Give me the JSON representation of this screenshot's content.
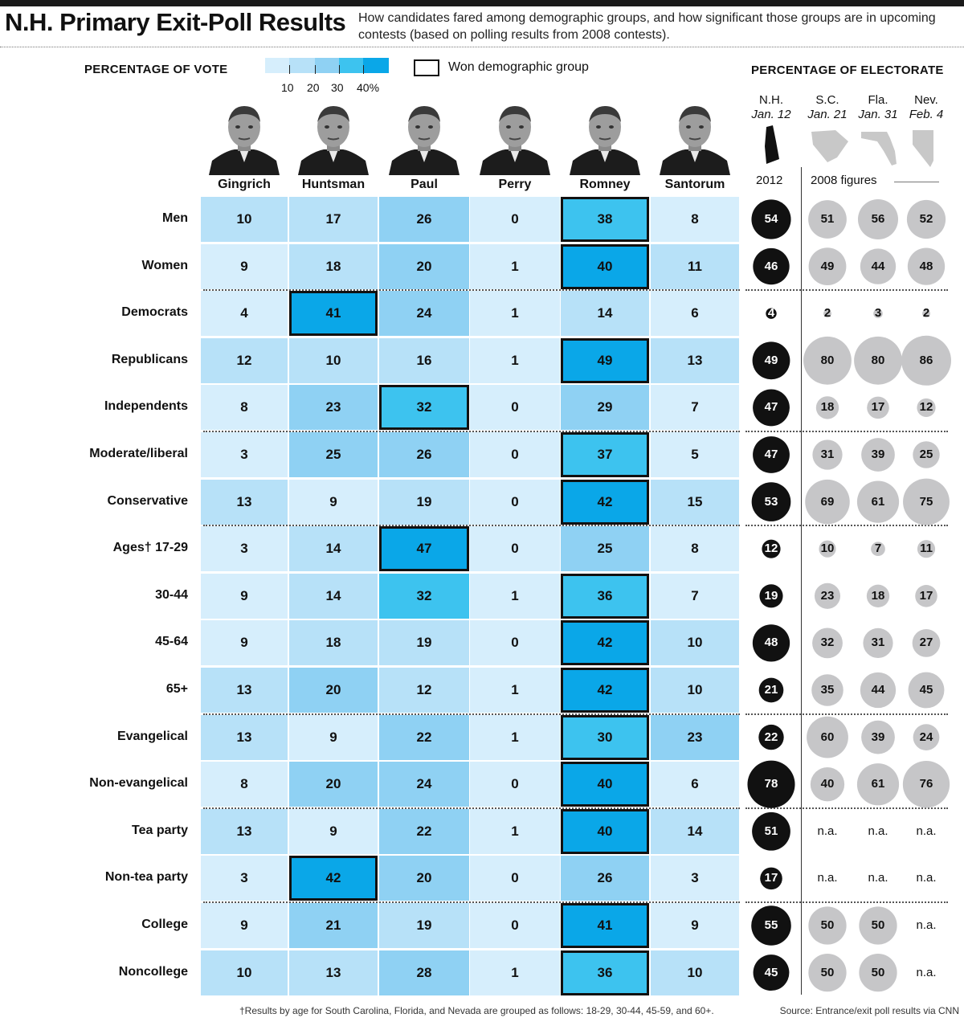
{
  "title": "N.H. Primary Exit-Poll Results",
  "subtitle": "How candidates fared among demographic groups, and how significant those groups are in upcoming contests (based on polling results from 2008 contests).",
  "legend": {
    "heading": "PERCENTAGE OF VOTE",
    "ticks": [
      "10",
      "20",
      "30",
      "40%"
    ],
    "won_label": "Won demographic group",
    "colors": [
      "#d6eefc",
      "#b7e1f8",
      "#8fd1f3",
      "#3dc3ef",
      "#0aa7e8"
    ]
  },
  "electorate": {
    "heading": "PERCENTAGE OF ELECTORATE",
    "states": [
      {
        "name": "N.H.",
        "date": "Jan. 12",
        "icon": "new-hampshire-map-icon"
      },
      {
        "name": "S.C.",
        "date": "Jan. 21",
        "icon": "south-carolina-map-icon"
      },
      {
        "name": "Fla.",
        "date": "Jan. 31",
        "icon": "florida-map-icon"
      },
      {
        "name": "Nev.",
        "date": "Feb. 4",
        "icon": "nevada-map-icon"
      }
    ],
    "year_2012": "2012",
    "year_2008": "2008 figures",
    "na_label": "n.a."
  },
  "candidates": [
    "Gingrich",
    "Huntsman",
    "Paul",
    "Perry",
    "Romney",
    "Santorum"
  ],
  "chart_data": {
    "type": "heatmap",
    "columns": [
      "Gingrich",
      "Huntsman",
      "Paul",
      "Perry",
      "Romney",
      "Santorum"
    ],
    "rows": [
      {
        "label": "Men",
        "values": [
          10,
          17,
          26,
          0,
          38,
          8
        ],
        "won": 4,
        "electorate": [
          54,
          51,
          56,
          52
        ]
      },
      {
        "label": "Women",
        "values": [
          9,
          18,
          20,
          1,
          40,
          11
        ],
        "won": 4,
        "electorate": [
          46,
          49,
          44,
          48
        ]
      },
      {
        "label": "Democrats",
        "values": [
          4,
          41,
          24,
          1,
          14,
          6
        ],
        "won": 1,
        "electorate": [
          4,
          2,
          3,
          2
        ]
      },
      {
        "label": "Republicans",
        "values": [
          12,
          10,
          16,
          1,
          49,
          13
        ],
        "won": 4,
        "electorate": [
          49,
          80,
          80,
          86
        ]
      },
      {
        "label": "Independents",
        "values": [
          8,
          23,
          32,
          0,
          29,
          7
        ],
        "won": 2,
        "electorate": [
          47,
          18,
          17,
          12
        ]
      },
      {
        "label": "Moderate/liberal",
        "values": [
          3,
          25,
          26,
          0,
          37,
          5
        ],
        "won": 4,
        "electorate": [
          47,
          31,
          39,
          25
        ]
      },
      {
        "label": "Conservative",
        "values": [
          13,
          9,
          19,
          0,
          42,
          15
        ],
        "won": 4,
        "electorate": [
          53,
          69,
          61,
          75
        ]
      },
      {
        "label": "Ages† 17-29",
        "values": [
          3,
          14,
          47,
          0,
          25,
          8
        ],
        "won": 2,
        "electorate": [
          12,
          10,
          7,
          11
        ]
      },
      {
        "label": "30-44",
        "values": [
          9,
          14,
          32,
          1,
          36,
          7
        ],
        "won": 4,
        "electorate": [
          19,
          23,
          18,
          17
        ]
      },
      {
        "label": "45-64",
        "values": [
          9,
          18,
          19,
          0,
          42,
          10
        ],
        "won": 4,
        "electorate": [
          48,
          32,
          31,
          27
        ]
      },
      {
        "label": "65+",
        "values": [
          13,
          20,
          12,
          1,
          42,
          10
        ],
        "won": 4,
        "electorate": [
          21,
          35,
          44,
          45
        ]
      },
      {
        "label": "Evangelical",
        "values": [
          13,
          9,
          22,
          1,
          30,
          23
        ],
        "won": 4,
        "electorate": [
          22,
          60,
          39,
          24
        ]
      },
      {
        "label": "Non-evangelical",
        "values": [
          8,
          20,
          24,
          0,
          40,
          6
        ],
        "won": 4,
        "electorate": [
          78,
          40,
          61,
          76
        ]
      },
      {
        "label": "Tea party",
        "values": [
          13,
          9,
          22,
          1,
          40,
          14
        ],
        "won": 4,
        "electorate": [
          51,
          null,
          null,
          null
        ]
      },
      {
        "label": "Non-tea party",
        "values": [
          3,
          42,
          20,
          0,
          26,
          3
        ],
        "won": 1,
        "electorate": [
          17,
          null,
          null,
          null
        ]
      },
      {
        "label": "College",
        "values": [
          9,
          21,
          19,
          0,
          41,
          9
        ],
        "won": 4,
        "electorate": [
          55,
          50,
          50,
          null
        ]
      },
      {
        "label": "Noncollege",
        "values": [
          10,
          13,
          28,
          1,
          36,
          10
        ],
        "won": 4,
        "electorate": [
          45,
          50,
          50,
          null
        ]
      }
    ]
  },
  "footnote": "†Results by age for South Carolina, Florida, and Nevada are grouped as follows: 18-29, 30-44, 45-59, and 60+.",
  "source": "Source: Entrance/exit poll results via CNN"
}
